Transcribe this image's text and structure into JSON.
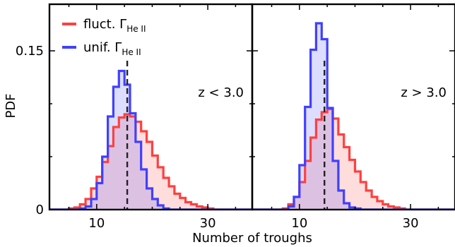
{
  "chart_data": {
    "type": "histogram",
    "ylabel": "PDF",
    "xlabel": "Number of troughs",
    "x_range": [
      1.5,
      38
    ],
    "y_range": [
      0,
      0.194
    ],
    "x_ticks": [
      10,
      30
    ],
    "y_ticks": [
      {
        "value": 0,
        "label": "0"
      },
      {
        "value": 0.15,
        "label": "0.15"
      }
    ],
    "bin_start": 1,
    "bin_width": 1,
    "legend": {
      "position": "top-left",
      "entries": [
        {
          "symbol": "fluct.",
          "sub": "He II",
          "color": "#ff4040"
        },
        {
          "symbol": "unif.",
          "sub": "He II",
          "color": "#4040ff"
        }
      ],
      "gamma": "Γ"
    },
    "panels": [
      {
        "annotation": "z < 3.0",
        "median_line_x": 15.5,
        "series": [
          {
            "name": "fluct. Γ He II",
            "color": "#ff4040",
            "fill": "rgba(255,64,64,0.18)",
            "values": [
              0,
              0,
              0,
              0,
              0.001,
              0.002,
              0.005,
              0.01,
              0.02,
              0.031,
              0.045,
              0.06,
              0.078,
              0.087,
              0.09,
              0.088,
              0.083,
              0.074,
              0.064,
              0.051,
              0.04,
              0.03,
              0.022,
              0.015,
              0.011,
              0.007,
              0.005,
              0.003,
              0.002,
              0.001,
              0,
              0,
              0,
              0,
              0,
              0,
              0
            ]
          },
          {
            "name": "unif. Γ He II",
            "color": "#4040ff",
            "fill": "rgba(64,64,255,0.18)",
            "values": [
              0,
              0,
              0,
              0,
              0,
              0,
              0.001,
              0.003,
              0.01,
              0.025,
              0.05,
              0.088,
              0.116,
              0.131,
              0.118,
              0.091,
              0.064,
              0.038,
              0.02,
              0.01,
              0.004,
              0.001,
              0,
              0,
              0,
              0,
              0,
              0,
              0,
              0,
              0,
              0,
              0,
              0,
              0,
              0,
              0
            ]
          }
        ]
      },
      {
        "annotation": "z > 3.0",
        "median_line_x": 14.5,
        "series": [
          {
            "name": "fluct. Γ He II",
            "color": "#ff4040",
            "fill": "rgba(255,64,64,0.18)",
            "values": [
              0,
              0,
              0,
              0,
              0,
              0,
              0.001,
              0.005,
              0.012,
              0.026,
              0.046,
              0.068,
              0.085,
              0.092,
              0.095,
              0.086,
              0.071,
              0.059,
              0.047,
              0.036,
              0.026,
              0.018,
              0.012,
              0.008,
              0.005,
              0.003,
              0.002,
              0.001,
              0,
              0,
              0,
              0,
              0,
              0,
              0,
              0,
              0
            ]
          },
          {
            "name": "unif. Γ He II",
            "color": "#4040ff",
            "fill": "rgba(64,64,255,0.18)",
            "values": [
              0,
              0,
              0,
              0,
              0,
              0,
              0,
              0.003,
              0.012,
              0.042,
              0.097,
              0.151,
              0.176,
              0.161,
              0.096,
              0.046,
              0.018,
              0.006,
              0.002,
              0.001,
              0,
              0,
              0,
              0,
              0,
              0,
              0,
              0,
              0,
              0,
              0,
              0,
              0,
              0,
              0,
              0,
              0
            ]
          }
        ]
      }
    ]
  }
}
